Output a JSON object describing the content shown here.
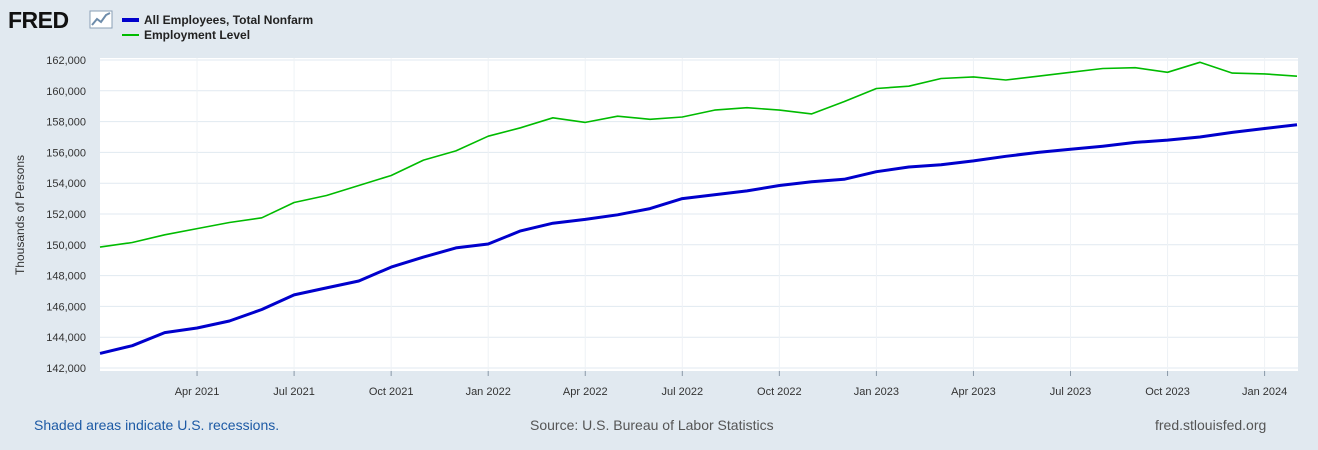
{
  "logo": {
    "text": "FRED"
  },
  "chart_data": {
    "type": "line",
    "title": "",
    "xlabel": "",
    "ylabel": "Thousands of Persons",
    "ylim": [
      142000,
      162000
    ],
    "yticks": [
      142000,
      144000,
      146000,
      148000,
      150000,
      152000,
      154000,
      156000,
      158000,
      160000,
      162000
    ],
    "ytick_labels": [
      "142,000",
      "144,000",
      "146,000",
      "148,000",
      "150,000",
      "152,000",
      "154,000",
      "156,000",
      "158,000",
      "160,000",
      "162,000"
    ],
    "xlim": [
      0,
      38
    ],
    "xticks": [
      {
        "index": 3,
        "label": "Apr 2021"
      },
      {
        "index": 6,
        "label": "Jul 2021"
      },
      {
        "index": 9,
        "label": "Oct 2021"
      },
      {
        "index": 12,
        "label": "Jan 2022"
      },
      {
        "index": 15,
        "label": "Apr 2022"
      },
      {
        "index": 18,
        "label": "Jul 2022"
      },
      {
        "index": 21,
        "label": "Oct 2022"
      },
      {
        "index": 24,
        "label": "Jan 2023"
      },
      {
        "index": 27,
        "label": "Apr 2023"
      },
      {
        "index": 30,
        "label": "Jul 2023"
      },
      {
        "index": 33,
        "label": "Oct 2023"
      },
      {
        "index": 36,
        "label": "Jan 2024"
      }
    ],
    "grid": true,
    "legend_position": "top-left",
    "series": [
      {
        "name": "All Employees, Total Nonfarm",
        "color": "#0000cc",
        "values": [
          142950,
          143450,
          144300,
          144600,
          145050,
          145800,
          146750,
          147200,
          147650,
          148550,
          149200,
          149800,
          150050,
          150900,
          151400,
          151650,
          151950,
          152350,
          153000,
          153250,
          153500,
          153850,
          154100,
          154250,
          154750,
          155050,
          155200,
          155450,
          155750,
          156000,
          156200,
          156400,
          156650,
          156800,
          157000,
          157300,
          157550,
          157800
        ]
      },
      {
        "name": "Employment Level",
        "color": "#00bb00",
        "values": [
          149850,
          150150,
          150650,
          151050,
          151450,
          151750,
          152750,
          153200,
          153850,
          154500,
          155500,
          156100,
          157050,
          157600,
          158250,
          157950,
          158350,
          158150,
          158300,
          158750,
          158900,
          158750,
          158500,
          159300,
          160150,
          160300,
          160800,
          160900,
          160700,
          160950,
          161200,
          161450,
          161500,
          161200,
          161850,
          161150,
          161100,
          160950
        ]
      }
    ]
  },
  "footer": {
    "recessions_note": "Shaded areas indicate U.S. recessions.",
    "source": "Source: U.S. Bureau of Labor Statistics",
    "site": "fred.stlouisfed.org"
  }
}
